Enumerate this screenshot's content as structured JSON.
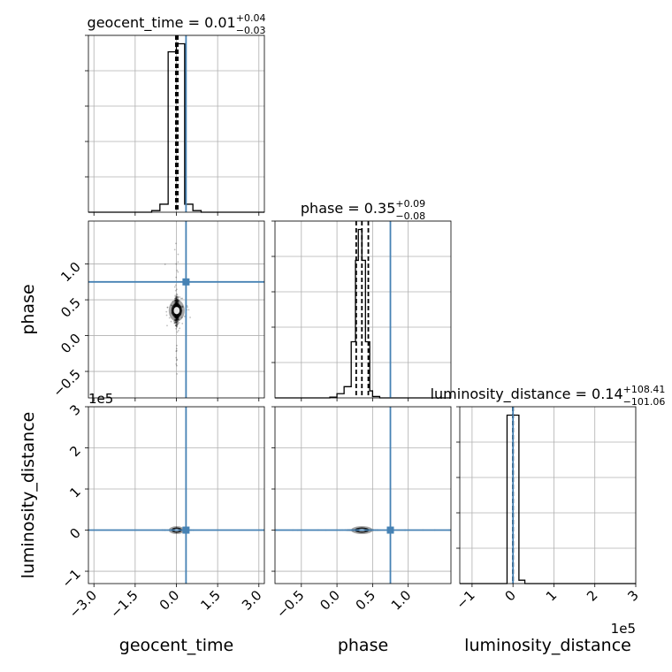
{
  "chart_data": {
    "type": "corner",
    "truth_color": "#4682b4",
    "offset_labels": [
      "1e5",
      "1e5"
    ],
    "parameters": [
      {
        "name": "geocent_time",
        "axis_label": "geocent_time",
        "title_prefix": "geocent_time = 0.01",
        "title_sup": "+0.04",
        "title_sub": "−0.03",
        "range": [
          -3.2,
          3.2
        ],
        "ticks": [
          -3.0,
          -1.5,
          0.0,
          1.5,
          3.0
        ],
        "tick_labels": [
          "−3.0",
          "−1.5",
          "0.0",
          "1.5",
          "3.0"
        ],
        "truth": 0.35,
        "quantiles": [
          -0.02,
          0.01,
          0.05
        ],
        "hist_edges": [
          -0.9,
          -0.6,
          -0.3,
          0.0,
          0.3,
          0.6,
          0.9
        ],
        "hist_counts": [
          0.01,
          0.05,
          1.0,
          1.05,
          0.05,
          0.01
        ]
      },
      {
        "name": "phase",
        "axis_label": "phase",
        "title_prefix": "phase = 0.35",
        "title_sup": "+0.09",
        "title_sub": "−0.08",
        "range": [
          -0.87,
          1.6
        ],
        "ticks": [
          -0.5,
          0.0,
          0.5,
          1.0
        ],
        "tick_labels": [
          "−0.5",
          "0.0",
          "0.5",
          "1.0"
        ],
        "truth": 0.75,
        "quantiles": [
          0.27,
          0.35,
          0.44
        ],
        "hist_edges": [
          -0.1,
          0.0,
          0.1,
          0.2,
          0.26,
          0.3,
          0.35,
          0.4,
          0.46,
          0.5,
          0.6
        ],
        "hist_counts": [
          0.005,
          0.03,
          0.08,
          0.4,
          0.98,
          1.2,
          0.98,
          0.4,
          0.05,
          0.01
        ]
      },
      {
        "name": "luminosity_distance",
        "axis_label": "luminosity_distance",
        "title_prefix": "luminosity_distance = 0.14",
        "title_sup": "+108.41",
        "title_sub": "−101.06",
        "range": [
          -130000,
          300000
        ],
        "ticks": [
          -100000,
          0,
          100000,
          200000,
          300000
        ],
        "tick_labels": [
          "−1",
          "0",
          "1",
          "2",
          "3"
        ],
        "truth": 0,
        "quantiles": [
          -101.06,
          0.14,
          108.41
        ],
        "hist_edges": [
          -14500,
          0,
          14500,
          29000
        ],
        "hist_counts": [
          1.0,
          1.0,
          0.02
        ]
      }
    ],
    "diag_yticks": [
      0.2,
      0.4,
      0.6,
      0.8,
      1.0
    ],
    "phase_row_yticks": [
      -0.5,
      0.0,
      0.5,
      1.0
    ],
    "phase_row_ytick_labels": [
      "−0.5",
      "0.0",
      "0.5",
      "1.0"
    ],
    "ld_row_yticks": [
      -100000,
      0,
      100000,
      200000,
      300000
    ],
    "ld_row_ytick_labels": [
      "−1",
      "0",
      "1",
      "2",
      "3"
    ]
  }
}
